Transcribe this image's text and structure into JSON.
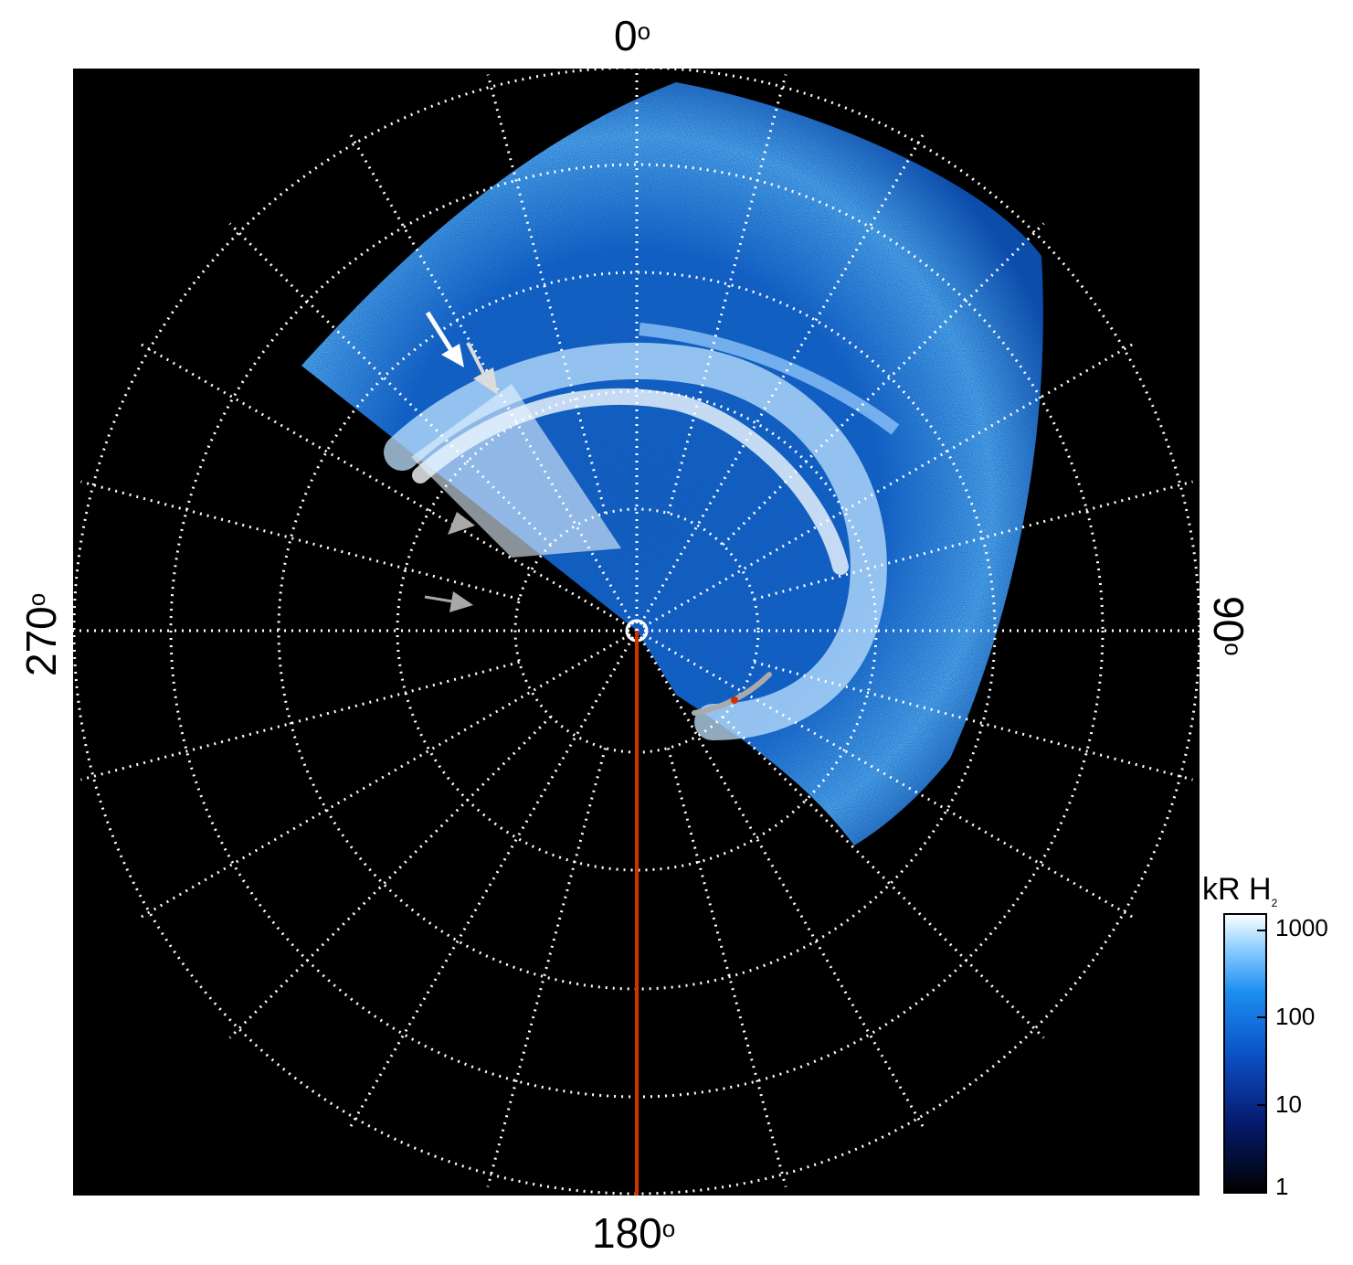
{
  "labels": {
    "top": "0",
    "right": "90",
    "bottom": "180",
    "left": "270",
    "degree_symbol": "o"
  },
  "colorbar": {
    "title": "kR H",
    "title_subscript": "2",
    "ticks": [
      "1000",
      "100",
      "10",
      "1"
    ]
  },
  "colors": {
    "background_plot": "#000000",
    "grid": "#ffffff",
    "meridian_line": "#cc3300",
    "arc": "#aaaaaa",
    "aurora_bright": "#e8f4ff",
    "aurora_mid": "#2f8cf0",
    "aurora_dark": "#0a2f8a"
  }
}
